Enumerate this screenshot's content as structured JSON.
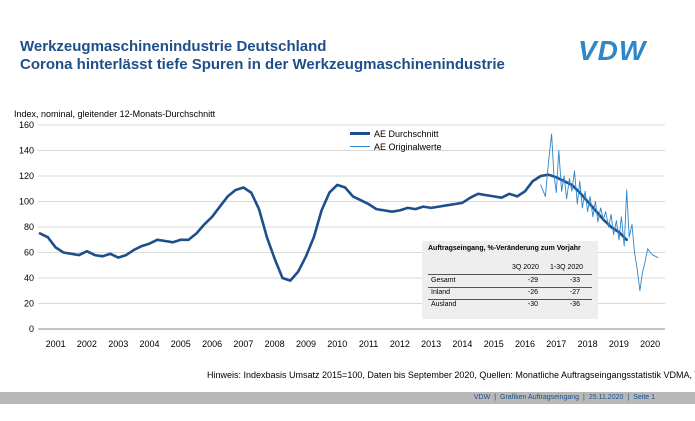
{
  "header": {
    "title": "Werkzeugmaschinenindustrie Deutschland",
    "subtitle": "Corona hinterlässt tiefe Spuren in der Werkzeugmaschinenindustrie",
    "logo_text": "VDW"
  },
  "note": "Hinweis: Indexbasis Umsatz 2015=100, Daten bis September 2020, Quellen: Monatliche Auftragseingangsstatistik VDMA, VDW",
  "footer": {
    "org": "VDW",
    "doc": "Grafiken Auftragseingang",
    "date": "25.11.2020",
    "page": "Seite 1"
  },
  "colors": {
    "title": "#1e4f8a",
    "logo": "#2f86c8",
    "series_thick": "#1e4f8a",
    "series_thin": "#2f86c8",
    "footer_bar": "#b8b8b8",
    "table_bg": "#eeeeee"
  },
  "table": {
    "title": "Auftragseingang, %-Veränderung zum Vorjahr",
    "columns": [
      "3Q 2020",
      "1-3Q 2020"
    ],
    "rows": [
      {
        "label": "Gesamt",
        "q3": "-29",
        "q13": "-33"
      },
      {
        "label": "Inland",
        "q3": "-26",
        "q13": "-27"
      },
      {
        "label": "Ausland",
        "q3": "-30",
        "q13": "-36"
      }
    ]
  },
  "chart_data": {
    "type": "line",
    "ylabel": "Index, nominal, gleitender 12-Monats-Durchschnitt",
    "ylim": [
      0,
      160
    ],
    "yticks": [
      0,
      20,
      40,
      60,
      80,
      100,
      120,
      140,
      160
    ],
    "xlim": [
      2001.0,
      2020.75
    ],
    "xtick_labels": [
      "2001",
      "2002",
      "2003",
      "2004",
      "2005",
      "2006",
      "2007",
      "2008",
      "2009",
      "2010",
      "2011",
      "2012",
      "2013",
      "2014",
      "2015",
      "2016",
      "2017",
      "2018",
      "2019",
      "2020"
    ],
    "grid": "horizontal",
    "legend_position": "top-center",
    "series": [
      {
        "name": "AE Durchschnitt",
        "style": "thick",
        "x": [
          2001.0,
          2001.25,
          2001.5,
          2001.75,
          2002.0,
          2002.25,
          2002.5,
          2002.75,
          2003.0,
          2003.25,
          2003.5,
          2003.75,
          2004.0,
          2004.25,
          2004.5,
          2004.75,
          2005.0,
          2005.25,
          2005.5,
          2005.75,
          2006.0,
          2006.25,
          2006.5,
          2006.75,
          2007.0,
          2007.25,
          2007.5,
          2007.75,
          2008.0,
          2008.25,
          2008.5,
          2008.75,
          2009.0,
          2009.25,
          2009.5,
          2009.75,
          2010.0,
          2010.25,
          2010.5,
          2010.75,
          2011.0,
          2011.25,
          2011.5,
          2011.75,
          2012.0,
          2012.25,
          2012.5,
          2012.75,
          2013.0,
          2013.25,
          2013.5,
          2013.75,
          2014.0,
          2014.25,
          2014.5,
          2014.75,
          2015.0,
          2015.25,
          2015.5,
          2015.75,
          2016.0,
          2016.25,
          2016.5,
          2016.75,
          2017.0,
          2017.25,
          2017.5,
          2017.75,
          2018.0,
          2018.25,
          2018.5,
          2018.75,
          2019.0,
          2019.25,
          2019.5,
          2019.75
        ],
        "y": [
          75,
          72,
          64,
          60,
          59,
          58,
          61,
          58,
          57,
          59,
          56,
          58,
          62,
          65,
          67,
          70,
          69,
          68,
          70,
          70,
          75,
          82,
          88,
          96,
          104,
          109,
          111,
          107,
          94,
          72,
          55,
          40,
          38,
          45,
          57,
          72,
          93,
          107,
          113,
          111,
          104,
          101,
          98,
          94,
          93,
          92,
          93,
          95,
          94,
          96,
          95,
          96,
          97,
          98,
          99,
          103,
          106,
          105,
          104,
          103,
          106,
          104,
          108,
          116,
          120,
          121,
          119,
          116,
          113,
          107,
          100,
          93,
          86,
          80,
          76,
          70
        ]
      },
      {
        "name": "AE Originalwerte",
        "style": "thin",
        "x": [
          2017.0,
          2017.15,
          2017.25,
          2017.35,
          2017.42,
          2017.5,
          2017.58,
          2017.67,
          2017.75,
          2017.83,
          2017.92,
          2018.0,
          2018.08,
          2018.17,
          2018.25,
          2018.33,
          2018.42,
          2018.5,
          2018.58,
          2018.67,
          2018.75,
          2018.83,
          2018.92,
          2019.0,
          2019.08,
          2019.17,
          2019.25,
          2019.33,
          2019.42,
          2019.5,
          2019.58,
          2019.67,
          2019.75,
          2019.83,
          2019.92,
          2020.0,
          2020.08,
          2020.17,
          2020.25,
          2020.33,
          2020.42,
          2020.5,
          2020.58,
          2020.67,
          2020.75
        ],
        "y": [
          113,
          104,
          131,
          153,
          122,
          107,
          140,
          108,
          120,
          102,
          118,
          108,
          124,
          98,
          116,
          95,
          108,
          92,
          104,
          88,
          100,
          84,
          95,
          86,
          92,
          80,
          90,
          74,
          85,
          70,
          88,
          65,
          109,
          72,
          82,
          60,
          48,
          30,
          44,
          52,
          63,
          60,
          58,
          57,
          56
        ]
      }
    ]
  }
}
